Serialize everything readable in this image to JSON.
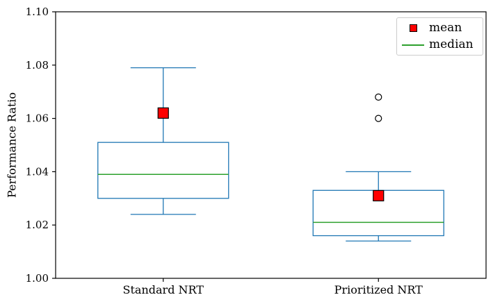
{
  "chart_data": {
    "type": "boxplot",
    "title": "",
    "ylabel": "Performance Ratio",
    "xlabel": "",
    "ylim": [
      1.0,
      1.1
    ],
    "yticks": [
      1.0,
      1.02,
      1.04,
      1.06,
      1.08,
      1.1
    ],
    "ytick_labels": [
      "1.00",
      "1.02",
      "1.04",
      "1.06",
      "1.08",
      "1.10"
    ],
    "grid": false,
    "categories": [
      "Standard NRT",
      "Prioritized NRT"
    ],
    "series": [
      {
        "name": "Standard NRT",
        "whisker_low": 1.024,
        "q1": 1.03,
        "median": 1.039,
        "q3": 1.051,
        "whisker_high": 1.079,
        "mean": 1.062,
        "outliers": []
      },
      {
        "name": "Prioritized NRT",
        "whisker_low": 1.014,
        "q1": 1.016,
        "median": 1.021,
        "q3": 1.033,
        "whisker_high": 1.04,
        "mean": 1.031,
        "outliers": [
          1.06,
          1.068
        ]
      }
    ],
    "legend": {
      "position": "upper-right",
      "entries": [
        {
          "label": "mean",
          "marker": "square"
        },
        {
          "label": "median",
          "marker": "line"
        }
      ]
    },
    "colors": {
      "box": "#1f77b4",
      "median": "#2ca02c",
      "mean_fill": "#ff0000",
      "mean_edge": "#000000",
      "outlier": "#000000",
      "axis": "#000000",
      "legend_border": "#cccccc",
      "background": "#ffffff"
    }
  }
}
